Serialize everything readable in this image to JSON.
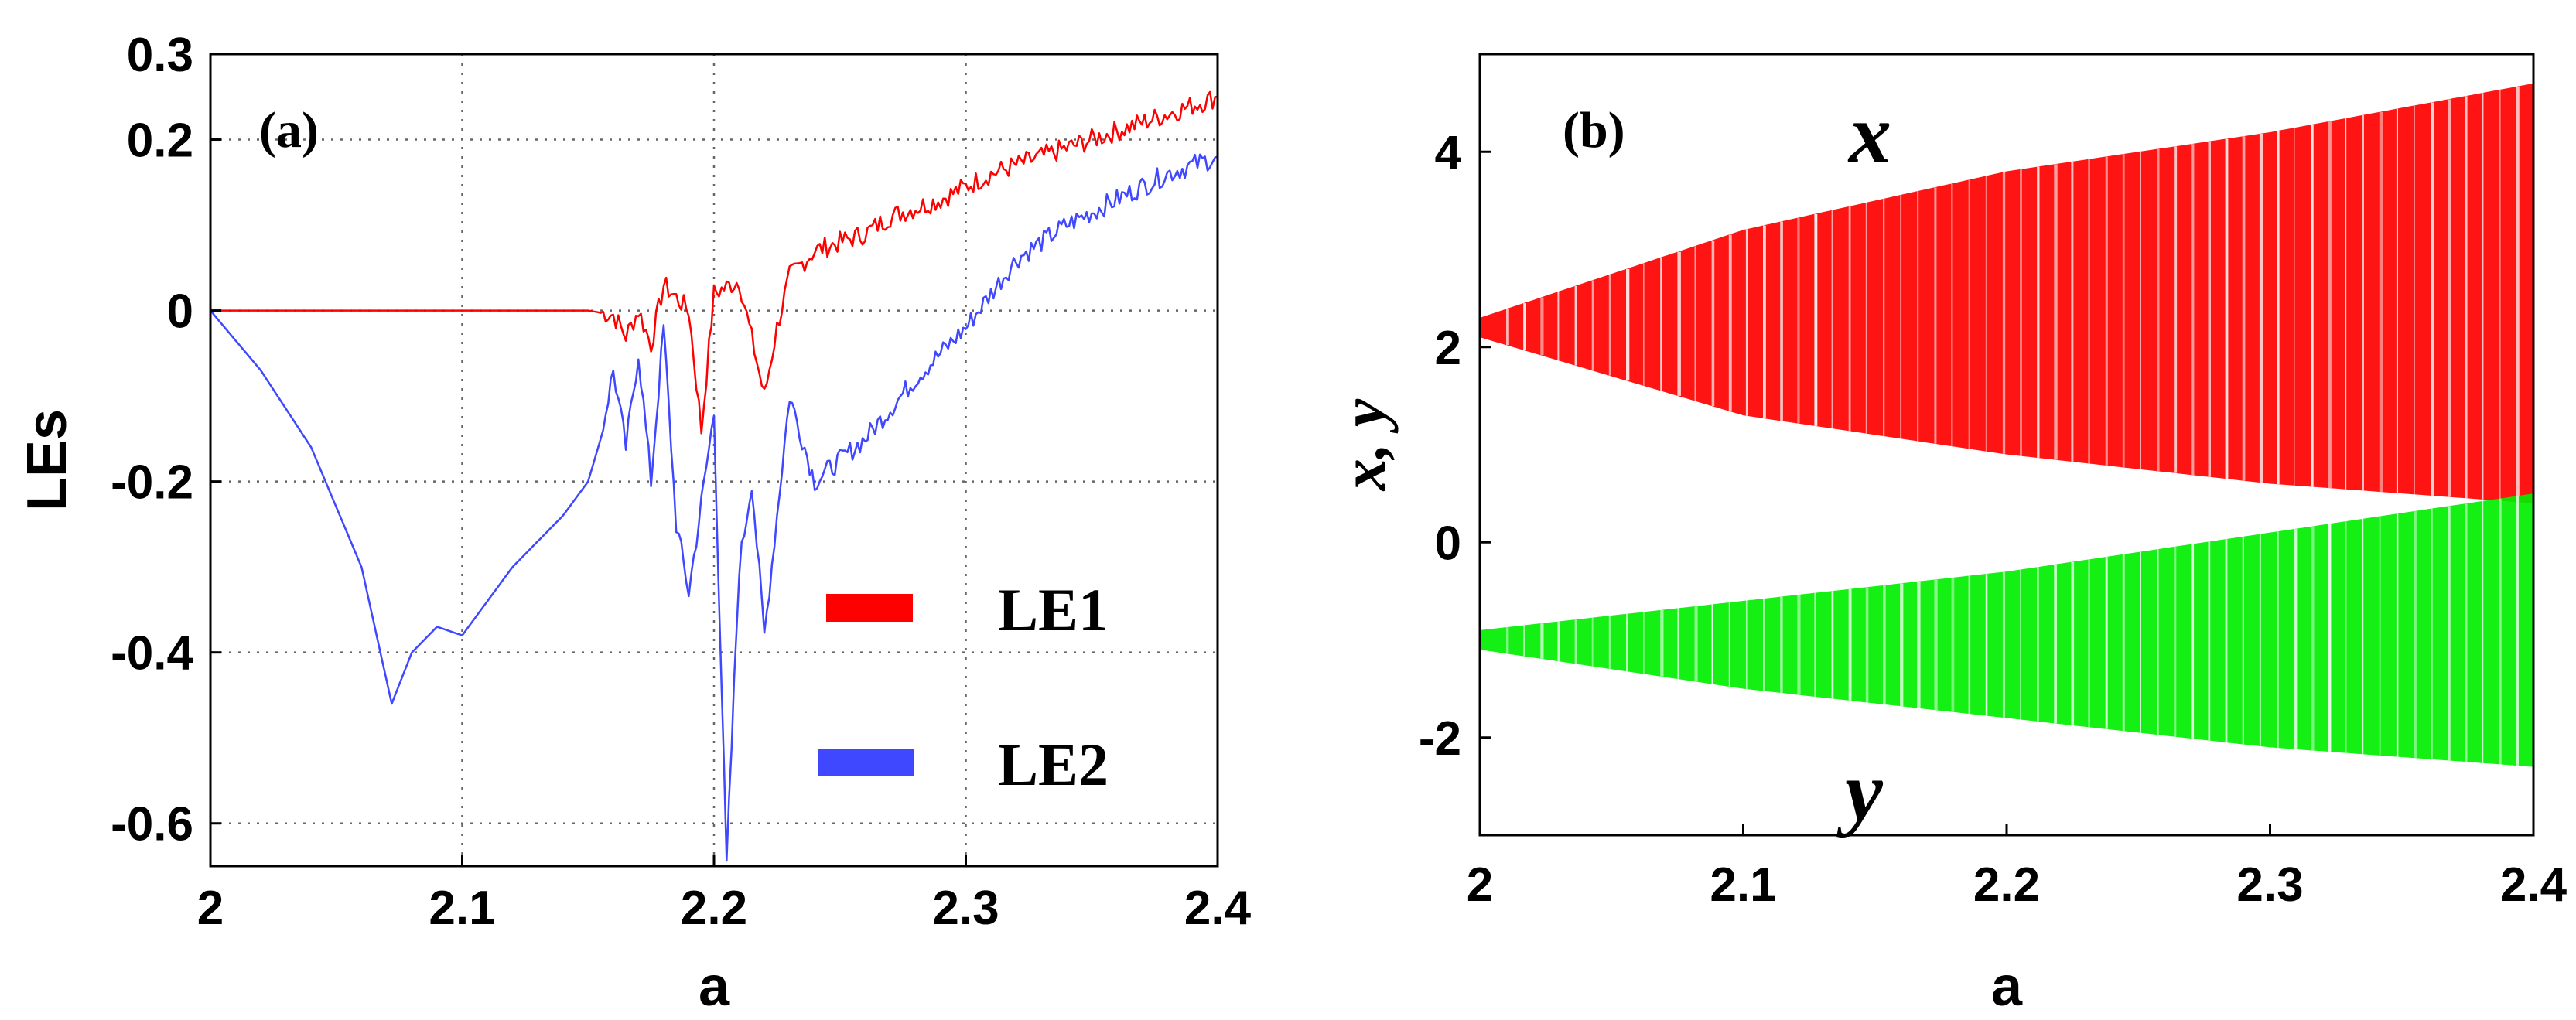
{
  "chart_data": [
    {
      "type": "line",
      "panel_label": "(a)",
      "xlabel": "a",
      "ylabel": "LEs",
      "xlim": [
        2,
        2.4
      ],
      "ylim": [
        -0.65,
        0.3
      ],
      "xticks": [
        "2",
        "2.1",
        "2.2",
        "2.3",
        "2.4"
      ],
      "xtick_values": [
        2,
        2.1,
        2.2,
        2.3,
        2.4
      ],
      "yticks": [
        "0.3",
        "0.2",
        "0",
        "-0.2",
        "-0.4",
        "-0.6"
      ],
      "ytick_values": [
        0.3,
        0.2,
        0,
        -0.2,
        -0.4,
        -0.6
      ],
      "grid": true,
      "legend_position": "lower-right",
      "series": [
        {
          "name": "LE1",
          "color": "#ff0000",
          "x": [
            2.0,
            2.05,
            2.1,
            2.15,
            2.16,
            2.165,
            2.17,
            2.175,
            2.18,
            2.19,
            2.195,
            2.2,
            2.21,
            2.22,
            2.225,
            2.23,
            2.24,
            2.25,
            2.26,
            2.27,
            2.29,
            2.31,
            2.33,
            2.35,
            2.37,
            2.39,
            2.4
          ],
          "y": [
            0,
            0,
            0,
            0,
            -0.005,
            -0.03,
            0.0,
            -0.04,
            0.03,
            0.0,
            -0.14,
            0.02,
            0.035,
            -0.1,
            -0.02,
            0.04,
            0.07,
            0.08,
            0.09,
            0.11,
            0.13,
            0.16,
            0.18,
            0.2,
            0.22,
            0.24,
            0.25
          ]
        },
        {
          "name": "LE2",
          "color": "#3f48ff",
          "x": [
            2.0,
            2.02,
            2.04,
            2.06,
            2.072,
            2.08,
            2.09,
            2.1,
            2.12,
            2.14,
            2.15,
            2.155,
            2.16,
            2.165,
            2.17,
            2.175,
            2.18,
            2.185,
            2.19,
            2.2,
            2.205,
            2.21,
            2.215,
            2.22,
            2.23,
            2.24,
            2.26,
            2.28,
            2.3,
            2.32,
            2.34,
            2.36,
            2.38,
            2.4
          ],
          "y": [
            0,
            -0.07,
            -0.16,
            -0.3,
            -0.46,
            -0.4,
            -0.37,
            -0.38,
            -0.3,
            -0.24,
            -0.2,
            -0.15,
            -0.07,
            -0.16,
            -0.05,
            -0.2,
            -0.02,
            -0.25,
            -0.33,
            -0.12,
            -0.65,
            -0.3,
            -0.2,
            -0.38,
            -0.1,
            -0.2,
            -0.15,
            -0.08,
            -0.02,
            0.06,
            0.1,
            0.13,
            0.16,
            0.18
          ]
        }
      ],
      "legend": [
        "LE1",
        "LE2"
      ]
    },
    {
      "type": "scatter",
      "panel_label": "(b)",
      "xlabel": "a",
      "ylabel": "x, y",
      "xlim": [
        2,
        2.4
      ],
      "ylim": [
        -3,
        5
      ],
      "xticks": [
        "2",
        "2.1",
        "2.2",
        "2.3",
        "2.4"
      ],
      "xtick_values": [
        2,
        2.1,
        2.2,
        2.3,
        2.4
      ],
      "yticks": [
        "4",
        "2",
        "0",
        "-2"
      ],
      "ytick_values": [
        4,
        2,
        0,
        -2
      ],
      "grid": false,
      "series": [
        {
          "name": "x",
          "color": "#ff0000",
          "a": [
            2.0,
            2.1,
            2.2,
            2.3,
            2.4
          ],
          "upper": [
            2.3,
            3.2,
            3.8,
            4.2,
            4.7
          ],
          "lower": [
            2.1,
            1.3,
            0.9,
            0.6,
            0.4
          ]
        },
        {
          "name": "y",
          "color": "#00ee00",
          "a": [
            2.0,
            2.1,
            2.2,
            2.3,
            2.4
          ],
          "upper": [
            -0.9,
            -0.6,
            -0.3,
            0.1,
            0.5
          ],
          "lower": [
            -1.1,
            -1.5,
            -1.8,
            -2.1,
            -2.3
          ]
        }
      ],
      "annotations": [
        "x",
        "y"
      ]
    }
  ]
}
